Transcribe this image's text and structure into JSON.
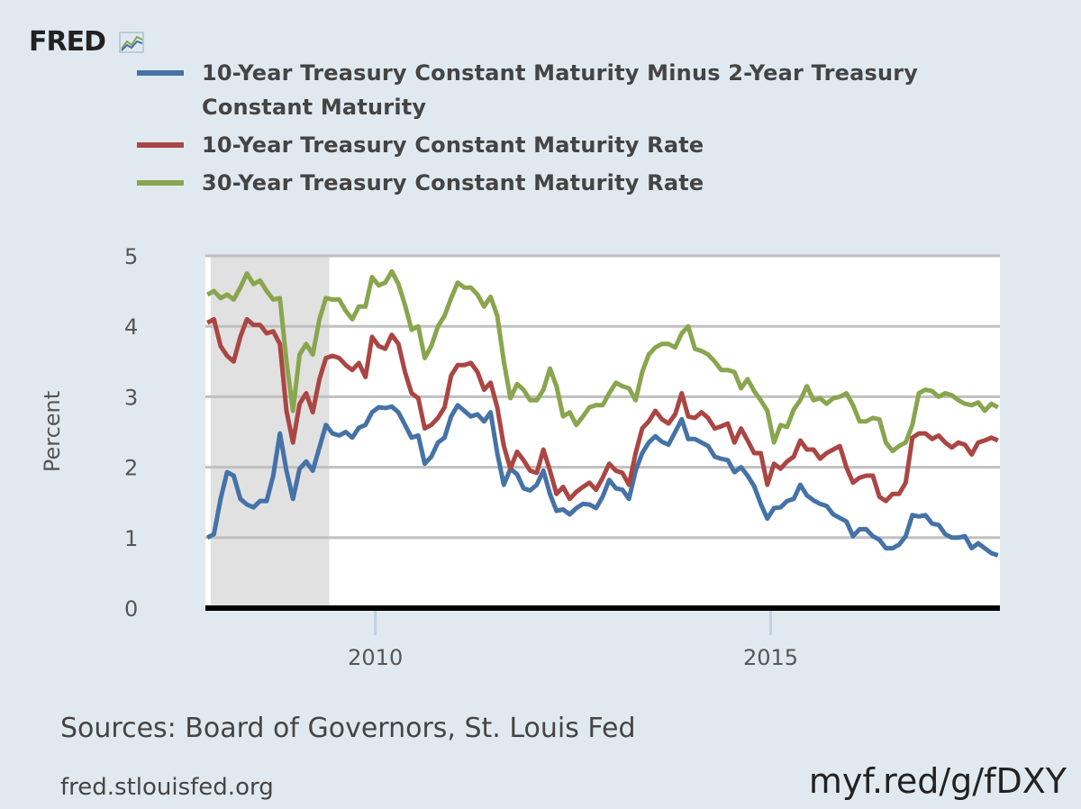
{
  "logo": "FRED",
  "chart_data": {
    "type": "line",
    "ylabel": "Percent",
    "xlim": [
      2007.85,
      2017.9
    ],
    "xticks": [
      2010,
      2015
    ],
    "ylim": [
      0,
      5
    ],
    "yticks": [
      0,
      1,
      2,
      3,
      4,
      5
    ],
    "grid": true,
    "recession": [
      2007.917,
      2009.417
    ],
    "recession_color": "#e1e1e1",
    "x": [
      2007.875,
      2007.958,
      2008.042,
      2008.125,
      2008.208,
      2008.292,
      2008.375,
      2008.458,
      2008.542,
      2008.625,
      2008.708,
      2008.792,
      2008.875,
      2008.958,
      2009.042,
      2009.125,
      2009.208,
      2009.292,
      2009.375,
      2009.458,
      2009.542,
      2009.625,
      2009.708,
      2009.792,
      2009.875,
      2009.958,
      2010.042,
      2010.125,
      2010.208,
      2010.292,
      2010.375,
      2010.458,
      2010.542,
      2010.625,
      2010.708,
      2010.792,
      2010.875,
      2010.958,
      2011.042,
      2011.125,
      2011.208,
      2011.292,
      2011.375,
      2011.458,
      2011.542,
      2011.625,
      2011.708,
      2011.792,
      2011.875,
      2011.958,
      2012.042,
      2012.125,
      2012.208,
      2012.292,
      2012.375,
      2012.458,
      2012.542,
      2012.625,
      2012.708,
      2012.792,
      2012.875,
      2012.958,
      2013.042,
      2013.125,
      2013.208,
      2013.292,
      2013.375,
      2013.458,
      2013.542,
      2013.625,
      2013.708,
      2013.792,
      2013.875,
      2013.958,
      2014.042,
      2014.125,
      2014.208,
      2014.292,
      2014.375,
      2014.458,
      2014.542,
      2014.625,
      2014.708,
      2014.792,
      2014.875,
      2014.958,
      2015.042,
      2015.125,
      2015.208,
      2015.292,
      2015.375,
      2015.458,
      2015.542,
      2015.625,
      2015.708,
      2015.792,
      2015.875,
      2015.958,
      2016.042,
      2016.125,
      2016.208,
      2016.292,
      2016.375,
      2016.458,
      2016.542,
      2016.625,
      2016.708,
      2016.792,
      2016.875,
      2016.958,
      2017.042,
      2017.125,
      2017.208,
      2017.292,
      2017.375,
      2017.458,
      2017.542,
      2017.625,
      2017.708,
      2017.792,
      2017.875
    ],
    "series": [
      {
        "name": "10-Year Treasury Constant Maturity Minus 2-Year Treasury Constant Maturity",
        "color": "#4572a7",
        "values": [
          1.0,
          1.05,
          1.55,
          1.93,
          1.88,
          1.55,
          1.47,
          1.43,
          1.52,
          1.52,
          1.88,
          2.48,
          1.95,
          1.55,
          1.98,
          2.08,
          1.95,
          2.28,
          2.6,
          2.48,
          2.45,
          2.5,
          2.42,
          2.56,
          2.6,
          2.78,
          2.85,
          2.84,
          2.86,
          2.78,
          2.6,
          2.42,
          2.45,
          2.05,
          2.15,
          2.35,
          2.42,
          2.72,
          2.88,
          2.8,
          2.72,
          2.75,
          2.65,
          2.78,
          2.2,
          1.75,
          1.98,
          1.9,
          1.7,
          1.67,
          1.75,
          1.95,
          1.62,
          1.38,
          1.4,
          1.33,
          1.42,
          1.48,
          1.47,
          1.42,
          1.58,
          1.82,
          1.7,
          1.68,
          1.55,
          1.95,
          2.2,
          2.35,
          2.44,
          2.36,
          2.32,
          2.5,
          2.68,
          2.4,
          2.4,
          2.35,
          2.3,
          2.15,
          2.12,
          2.1,
          1.93,
          2.0,
          1.88,
          1.73,
          1.48,
          1.27,
          1.42,
          1.43,
          1.52,
          1.55,
          1.75,
          1.6,
          1.53,
          1.48,
          1.45,
          1.33,
          1.28,
          1.23,
          1.02,
          1.12,
          1.12,
          1.02,
          0.97,
          0.85,
          0.85,
          0.9,
          1.02,
          1.32,
          1.3,
          1.32,
          1.2,
          1.18,
          1.05,
          1.0,
          1.0,
          1.02,
          0.85,
          0.92,
          0.85,
          0.78,
          0.75
        ]
      },
      {
        "name": "10-Year Treasury Constant Maturity Rate",
        "color": "#aa4643",
        "values": [
          4.05,
          4.1,
          3.72,
          3.58,
          3.5,
          3.85,
          4.1,
          4.02,
          4.02,
          3.9,
          3.93,
          3.75,
          2.8,
          2.35,
          2.9,
          3.05,
          2.78,
          3.25,
          3.55,
          3.58,
          3.55,
          3.45,
          3.38,
          3.48,
          3.28,
          3.85,
          3.72,
          3.68,
          3.88,
          3.75,
          3.35,
          3.05,
          2.98,
          2.55,
          2.6,
          2.7,
          2.85,
          3.3,
          3.45,
          3.45,
          3.48,
          3.35,
          3.1,
          3.2,
          2.85,
          2.3,
          1.98,
          2.22,
          2.1,
          1.95,
          1.92,
          2.25,
          1.95,
          1.62,
          1.72,
          1.55,
          1.65,
          1.72,
          1.78,
          1.68,
          1.85,
          2.05,
          1.95,
          1.92,
          1.75,
          2.2,
          2.55,
          2.65,
          2.8,
          2.68,
          2.62,
          2.75,
          3.05,
          2.72,
          2.7,
          2.78,
          2.7,
          2.55,
          2.58,
          2.62,
          2.35,
          2.55,
          2.38,
          2.2,
          2.2,
          1.75,
          2.05,
          1.98,
          2.08,
          2.15,
          2.38,
          2.25,
          2.25,
          2.12,
          2.2,
          2.25,
          2.3,
          2.0,
          1.78,
          1.85,
          1.88,
          1.88,
          1.58,
          1.52,
          1.62,
          1.62,
          1.78,
          2.42,
          2.48,
          2.48,
          2.4,
          2.45,
          2.35,
          2.28,
          2.35,
          2.32,
          2.18,
          2.35,
          2.38,
          2.42,
          2.38
        ]
      },
      {
        "name": "30-Year Treasury Constant Maturity Rate",
        "color": "#89a54e",
        "values": [
          4.45,
          4.5,
          4.4,
          4.45,
          4.38,
          4.55,
          4.75,
          4.6,
          4.65,
          4.5,
          4.38,
          4.4,
          3.5,
          2.8,
          3.6,
          3.75,
          3.6,
          4.1,
          4.4,
          4.38,
          4.38,
          4.22,
          4.1,
          4.28,
          4.28,
          4.7,
          4.58,
          4.62,
          4.78,
          4.6,
          4.3,
          3.95,
          4.0,
          3.55,
          3.72,
          4.0,
          4.15,
          4.4,
          4.62,
          4.55,
          4.55,
          4.45,
          4.28,
          4.42,
          4.15,
          3.5,
          2.98,
          3.18,
          3.1,
          2.95,
          2.95,
          3.1,
          3.4,
          3.15,
          2.72,
          2.78,
          2.6,
          2.72,
          2.85,
          2.88,
          2.88,
          3.05,
          3.2,
          3.15,
          3.12,
          2.95,
          3.35,
          3.6,
          3.7,
          3.75,
          3.75,
          3.7,
          3.9,
          4.0,
          3.68,
          3.65,
          3.6,
          3.5,
          3.38,
          3.38,
          3.35,
          3.12,
          3.25,
          3.08,
          2.95,
          2.8,
          2.35,
          2.6,
          2.57,
          2.82,
          2.95,
          3.15,
          2.95,
          2.98,
          2.9,
          2.98,
          3.0,
          3.05,
          2.88,
          2.65,
          2.65,
          2.7,
          2.68,
          2.35,
          2.23,
          2.3,
          2.35,
          2.6,
          3.05,
          3.1,
          3.08,
          3.0,
          3.05,
          3.02,
          2.95,
          2.9,
          2.88,
          2.92,
          2.8,
          2.9,
          2.85
        ]
      }
    ]
  },
  "footer": {
    "sources": "Sources: Board of Governors, St. Louis Fed",
    "site": "fred.stlouisfed.org",
    "short_link": "myf.red/g/fDXY"
  }
}
